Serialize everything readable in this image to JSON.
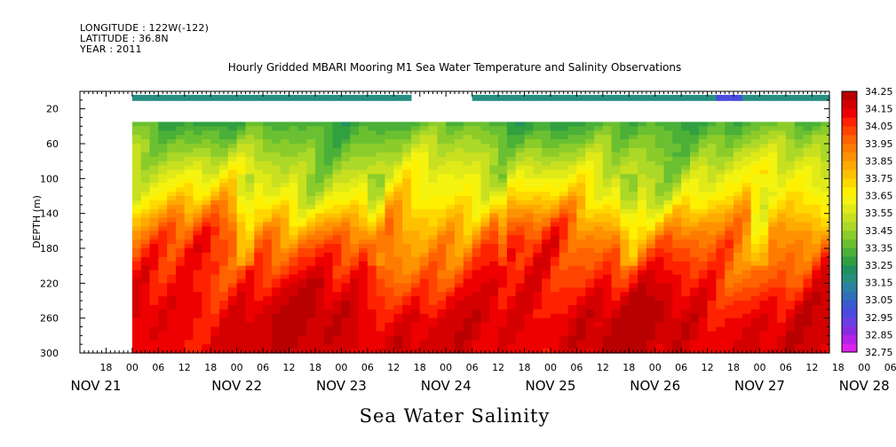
{
  "header": {
    "longitude": "LONGITUDE : 122W(-122)",
    "latitude": "LATITUDE : 36.8N",
    "year": "YEAR : 2011"
  },
  "chart_data": {
    "type": "heatmap",
    "title": "Hourly Gridded MBARI Mooring M1 Sea Water Temperature and Salinity Observations",
    "xlabel": "Sea Water Salinity",
    "ylabel": "DEPTH (m)",
    "x_start": "NOV 21 12:00",
    "x_end": "NOV 28 16:00",
    "hour_ticks": [
      "18",
      "00",
      "06",
      "12",
      "18",
      "00",
      "06",
      "12",
      "18",
      "00",
      "06",
      "12",
      "18",
      "00",
      "06",
      "12",
      "18",
      "00",
      "06",
      "12",
      "18",
      "00",
      "06",
      "12",
      "18",
      "00",
      "06",
      "12",
      "18",
      "00",
      "06",
      "12",
      "18",
      "00",
      "06",
      "12",
      "18",
      "00",
      "06",
      "12",
      "18",
      "00",
      "06",
      "12",
      "18",
      "00",
      "06",
      "12",
      "18",
      "00",
      "06",
      "12"
    ],
    "day_labels": [
      "NOV 21",
      "NOV 22",
      "NOV 23",
      "NOV 24",
      "NOV 25",
      "NOV 26",
      "NOV 27",
      "NOV 28"
    ],
    "ylim": [
      300,
      0
    ],
    "y_ticks": [
      20,
      60,
      100,
      140,
      180,
      220,
      260,
      300
    ],
    "colorbar": {
      "labels": [
        "34.25",
        "34.15",
        "34.05",
        "33.95",
        "33.85",
        "33.75",
        "33.65",
        "33.55",
        "33.45",
        "33.35",
        "33.25",
        "33.15",
        "33.05",
        "32.95",
        "32.85",
        "32.75"
      ],
      "levels": [
        32.75,
        32.8,
        32.85,
        32.9,
        32.95,
        33.0,
        33.05,
        33.1,
        33.15,
        33.2,
        33.25,
        33.3,
        33.35,
        33.4,
        33.45,
        33.5,
        33.55,
        33.6,
        33.65,
        33.7,
        33.75,
        33.8,
        33.85,
        33.9,
        33.95,
        34.0,
        34.05,
        34.1,
        34.15,
        34.2,
        34.25
      ],
      "colors": [
        "#dd22ee",
        "#b322e8",
        "#8a2be2",
        "#6a3ee6",
        "#4a4ae0",
        "#3a5ad0",
        "#2f6fb8",
        "#2a82a0",
        "#268f80",
        "#1f9060",
        "#30a040",
        "#4ab038",
        "#6ac030",
        "#8ccc2a",
        "#acd828",
        "#c8e020",
        "#e0ea18",
        "#f4f410",
        "#fff000",
        "#ffd800",
        "#ffc000",
        "#ffaa00",
        "#ff9200",
        "#ff7a00",
        "#ff6200",
        "#ff4400",
        "#ff2200",
        "#ee0000",
        "#d40000",
        "#b80000"
      ]
    },
    "surface_gap": {
      "from": "NOV 24 16:00",
      "to": "NOV 25 06:00"
    },
    "surface_value": 33.18,
    "surface_min_value": 32.95,
    "profile_depth": [
      35,
      40,
      60,
      80,
      100,
      120,
      140,
      160,
      180,
      200,
      220,
      240,
      260,
      280,
      300
    ],
    "profile_value": [
      33.3,
      33.34,
      33.42,
      33.5,
      33.58,
      33.66,
      33.78,
      33.9,
      33.98,
      34.03,
      34.08,
      34.13,
      34.16,
      34.17,
      34.16
    ]
  }
}
